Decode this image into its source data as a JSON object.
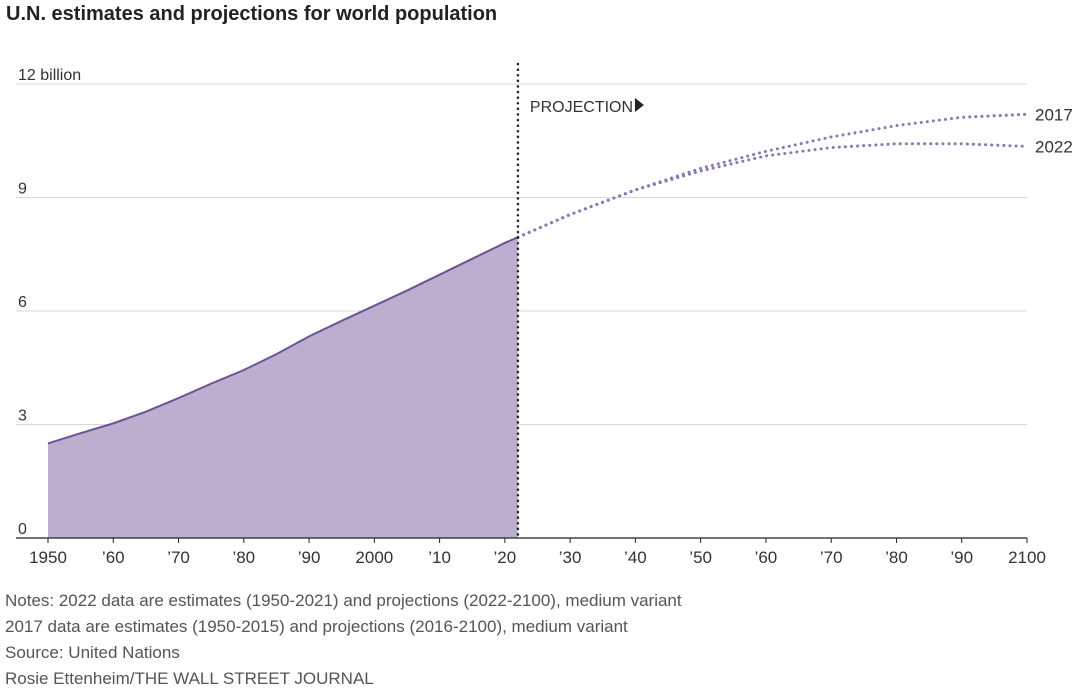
{
  "title": "U.N. estimates and projections for world population",
  "chart_data": {
    "type": "area",
    "title": "U.N. estimates and projections for world population",
    "xlim": [
      1950,
      2100
    ],
    "ylim": [
      0,
      12
    ],
    "yticks": [
      0,
      3,
      6,
      9,
      12
    ],
    "ytick_labels": [
      "0",
      "3",
      "6",
      "9",
      "12 billion"
    ],
    "xticks": [
      1950,
      1960,
      1970,
      1980,
      1990,
      2000,
      2010,
      2020,
      2030,
      2040,
      2050,
      2060,
      2070,
      2080,
      2090,
      2100
    ],
    "xtick_labels": [
      "1950",
      "’60",
      "’70",
      "’80",
      "’90",
      "2000",
      "’10",
      "’20",
      "’30",
      "’40",
      "’50",
      "’60",
      "’70",
      "’80",
      "’90",
      "2100"
    ],
    "grid": true,
    "projection_year": 2022,
    "projection_label": "PROJECTION",
    "series": [
      {
        "name": "estimates",
        "style": "area",
        "x": [
          1950,
          1955,
          1960,
          1965,
          1970,
          1975,
          1980,
          1985,
          1990,
          1995,
          2000,
          2005,
          2010,
          2015,
          2020,
          2022
        ],
        "values": [
          2.5,
          2.77,
          3.03,
          3.34,
          3.7,
          4.08,
          4.44,
          4.86,
          5.33,
          5.74,
          6.14,
          6.54,
          6.96,
          7.38,
          7.8,
          7.95
        ]
      },
      {
        "name": "2017",
        "style": "dotted",
        "x": [
          2022,
          2030,
          2040,
          2050,
          2060,
          2070,
          2080,
          2090,
          2100
        ],
        "values": [
          7.95,
          8.55,
          9.2,
          9.77,
          10.22,
          10.6,
          10.9,
          11.12,
          11.2
        ]
      },
      {
        "name": "2022",
        "style": "dotted",
        "x": [
          2022,
          2030,
          2040,
          2050,
          2060,
          2070,
          2080,
          2090,
          2100
        ],
        "values": [
          7.95,
          8.55,
          9.2,
          9.7,
          10.1,
          10.32,
          10.42,
          10.42,
          10.35
        ]
      }
    ],
    "colors": {
      "area_fill": "#bcaecf",
      "line": "#6b5397",
      "dots": "#8a76b5",
      "grid": "#d8d8d8",
      "axis": "#222222",
      "projection_line": "#222222"
    }
  },
  "notes": [
    "Notes: 2022 data are estimates (1950-2021) and projections (2022-2100), medium variant",
    "2017 data are estimates (1950-2015) and projections (2016-2100), medium variant",
    "Source: United Nations",
    "Rosie Ettenheim/THE WALL STREET JOURNAL"
  ]
}
